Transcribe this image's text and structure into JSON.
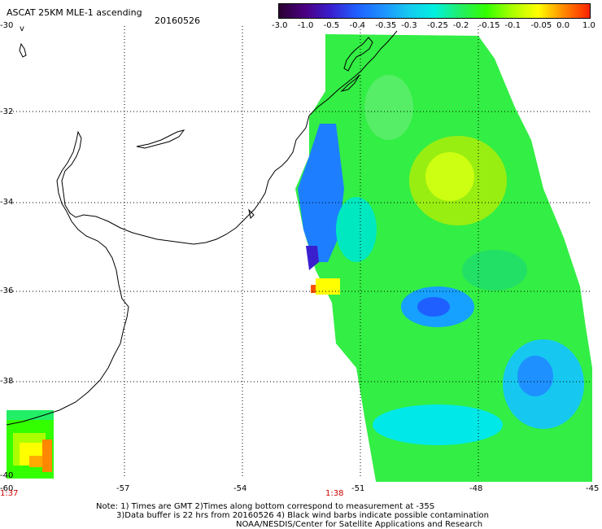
{
  "header": {
    "title": "ASCAT 25KM MLE-1 ascending",
    "date": "20160526"
  },
  "colorbar": {
    "ticks": [
      "-3.0",
      "-1.0",
      "-0.5",
      "-0.4",
      "-0.35",
      "-0.3",
      "-0.25",
      "-0.2",
      "-0.15",
      "-0.1",
      "-0.05",
      "0.0",
      "1.0"
    ],
    "colors": [
      "#2a0030",
      "#4b0082",
      "#3a1fcf",
      "#1f5fff",
      "#1e90ff",
      "#16c8f0",
      "#00f0e0",
      "#22ee66",
      "#33ff00",
      "#aaff00",
      "#ffff00",
      "#ff8800",
      "#ff2200"
    ]
  },
  "map": {
    "lat_labels": [
      "-30",
      "-32",
      "-34",
      "-36",
      "-38",
      "-40"
    ],
    "lon_labels": [
      "-60",
      "-57",
      "-54",
      "-51",
      "-48",
      "-45"
    ],
    "time_labels": [
      "1:37",
      "1:38"
    ],
    "north_marker": "v",
    "lat_range": [
      -40,
      -30
    ],
    "lon_range": [
      -60,
      -45
    ],
    "grid": "dotted"
  },
  "notes": {
    "line1": "Note: 1) Times are GMT 2)Times along bottom correspond to measurement at -35S",
    "line2": "3)Data buffer is 22 hrs from 20160526 4) Black wind barbs indicate possible contamination",
    "line3": "NOAA/NESDIS/Center for Satellite Applications and Research"
  }
}
